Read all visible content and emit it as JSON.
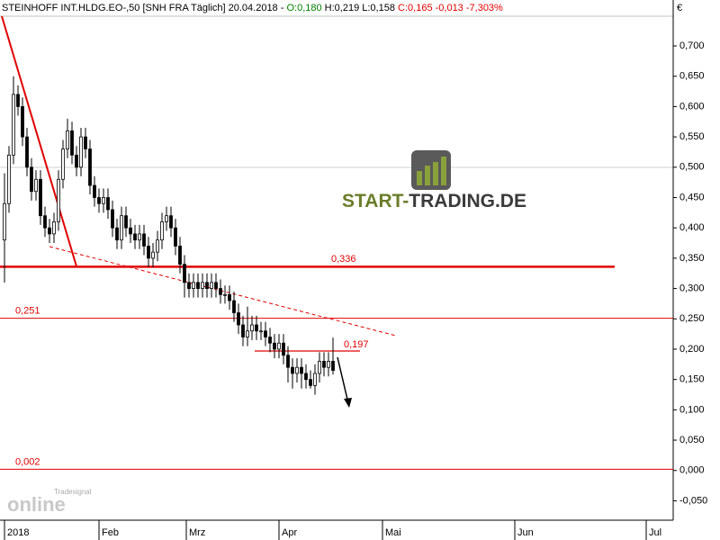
{
  "chart_data": {
    "type": "candlestick",
    "title": "STEINHOFF INT.HLDG.EO-,50 [SNH FRA  Täglich] 20.04.2018 -",
    "quote_open": "O:0,180",
    "quote_range": "H:0,219 L:0,158",
    "quote_close": "C:0,165 -0,013 -7,303%",
    "currency": "€",
    "logo": [
      "START-",
      "TRADING.DE"
    ],
    "watermark": [
      "Tradesignal",
      "online"
    ],
    "up_color": "#ffffff",
    "down_color": "#000000",
    "x": [
      0,
      1,
      2,
      3,
      4,
      5,
      6,
      7,
      8,
      9,
      10,
      11,
      12,
      13,
      14,
      15,
      16,
      17,
      18,
      19,
      20,
      21,
      22,
      23,
      24,
      25,
      26,
      27,
      28,
      29,
      30,
      31,
      32,
      33,
      34,
      35,
      36,
      37,
      38,
      39,
      40,
      41,
      42,
      43,
      44,
      45,
      46,
      47,
      48,
      49,
      50,
      51,
      52,
      53,
      54,
      55,
      56,
      57,
      58,
      59,
      60,
      61,
      62,
      63,
      64,
      65,
      66,
      67,
      68,
      69,
      70,
      71,
      72,
      73
    ],
    "open": [
      0.38,
      0.44,
      0.52,
      0.62,
      0.6,
      0.55,
      0.5,
      0.46,
      0.48,
      0.42,
      0.4,
      0.39,
      0.41,
      0.48,
      0.53,
      0.56,
      0.52,
      0.5,
      0.55,
      0.53,
      0.47,
      0.45,
      0.44,
      0.45,
      0.43,
      0.4,
      0.38,
      0.42,
      0.4,
      0.39,
      0.38,
      0.39,
      0.37,
      0.35,
      0.36,
      0.38,
      0.41,
      0.42,
      0.4,
      0.37,
      0.34,
      0.31,
      0.3,
      0.31,
      0.3,
      0.31,
      0.3,
      0.31,
      0.3,
      0.29,
      0.29,
      0.28,
      0.26,
      0.24,
      0.22,
      0.23,
      0.24,
      0.23,
      0.23,
      0.22,
      0.21,
      0.2,
      0.21,
      0.19,
      0.17,
      0.16,
      0.17,
      0.16,
      0.15,
      0.14,
      0.16,
      0.18,
      0.17,
      0.18
    ],
    "high": [
      0.49,
      0.535,
      0.65,
      0.635,
      0.615,
      0.565,
      0.515,
      0.495,
      0.495,
      0.435,
      0.415,
      0.425,
      0.495,
      0.545,
      0.58,
      0.575,
      0.535,
      0.565,
      0.565,
      0.545,
      0.485,
      0.465,
      0.465,
      0.465,
      0.445,
      0.415,
      0.435,
      0.435,
      0.415,
      0.405,
      0.405,
      0.405,
      0.385,
      0.375,
      0.395,
      0.425,
      0.435,
      0.435,
      0.415,
      0.385,
      0.355,
      0.325,
      0.325,
      0.325,
      0.325,
      0.325,
      0.325,
      0.325,
      0.315,
      0.305,
      0.305,
      0.295,
      0.275,
      0.255,
      0.27,
      0.255,
      0.255,
      0.245,
      0.245,
      0.235,
      0.225,
      0.225,
      0.225,
      0.205,
      0.185,
      0.185,
      0.185,
      0.175,
      0.165,
      0.175,
      0.195,
      0.195,
      0.195,
      0.219
    ],
    "low": [
      0.31,
      0.425,
      0.505,
      0.585,
      0.535,
      0.485,
      0.445,
      0.445,
      0.405,
      0.385,
      0.375,
      0.375,
      0.395,
      0.465,
      0.515,
      0.505,
      0.485,
      0.485,
      0.515,
      0.455,
      0.435,
      0.425,
      0.425,
      0.415,
      0.385,
      0.365,
      0.365,
      0.385,
      0.375,
      0.365,
      0.365,
      0.355,
      0.335,
      0.335,
      0.345,
      0.365,
      0.395,
      0.385,
      0.355,
      0.325,
      0.285,
      0.285,
      0.285,
      0.285,
      0.285,
      0.285,
      0.285,
      0.285,
      0.275,
      0.275,
      0.265,
      0.245,
      0.225,
      0.205,
      0.205,
      0.215,
      0.215,
      0.215,
      0.205,
      0.195,
      0.185,
      0.185,
      0.175,
      0.145,
      0.135,
      0.145,
      0.135,
      0.135,
      0.135,
      0.125,
      0.145,
      0.155,
      0.155,
      0.158
    ],
    "close": [
      0.44,
      0.52,
      0.62,
      0.6,
      0.55,
      0.5,
      0.46,
      0.48,
      0.42,
      0.4,
      0.39,
      0.41,
      0.48,
      0.53,
      0.56,
      0.52,
      0.5,
      0.55,
      0.53,
      0.47,
      0.45,
      0.44,
      0.45,
      0.43,
      0.4,
      0.38,
      0.42,
      0.4,
      0.39,
      0.38,
      0.39,
      0.37,
      0.35,
      0.36,
      0.38,
      0.41,
      0.42,
      0.4,
      0.37,
      0.34,
      0.31,
      0.3,
      0.31,
      0.3,
      0.31,
      0.3,
      0.31,
      0.3,
      0.29,
      0.29,
      0.28,
      0.26,
      0.24,
      0.22,
      0.23,
      0.24,
      0.23,
      0.23,
      0.22,
      0.21,
      0.2,
      0.21,
      0.19,
      0.17,
      0.16,
      0.17,
      0.16,
      0.15,
      0.14,
      0.16,
      0.18,
      0.17,
      0.18,
      0.165
    ],
    "xlim": [
      -1,
      148.6
    ],
    "xticks": [
      {
        "value": 0,
        "label": "2018"
      },
      {
        "value": 21,
        "label": "Feb"
      },
      {
        "value": 40.4,
        "label": "Mrz"
      },
      {
        "value": 61,
        "label": "Apr"
      },
      {
        "value": 84,
        "label": "Mai"
      },
      {
        "value": 113.4,
        "label": "Jun"
      },
      {
        "value": 142.6,
        "label": "Jul"
      }
    ],
    "ylim": [
      -0.082,
      0.749
    ],
    "yticks": [
      {
        "value": -0.05,
        "label": "-0,050"
      },
      {
        "value": 0,
        "label": "0,000"
      },
      {
        "value": 0.05,
        "label": "0,050"
      },
      {
        "value": 0.1,
        "label": "0,100"
      },
      {
        "value": 0.15,
        "label": "0,150"
      },
      {
        "value": 0.2,
        "label": "0,200"
      },
      {
        "value": 0.25,
        "label": "0,250"
      },
      {
        "value": 0.3,
        "label": "0,300"
      },
      {
        "value": 0.35,
        "label": "0,350"
      },
      {
        "value": 0.4,
        "label": "0,400"
      },
      {
        "value": 0.45,
        "label": "0,450"
      },
      {
        "value": 0.5,
        "label": "0,500"
      },
      {
        "value": 0.55,
        "label": "0,550"
      },
      {
        "value": 0.6,
        "label": "0,600"
      },
      {
        "value": 0.65,
        "label": "0,650"
      },
      {
        "value": 0.7,
        "label": "0,700"
      }
    ],
    "levels": [
      {
        "value": 0.336,
        "label": "0,336",
        "color": "#e00000"
      },
      {
        "value": 0.251,
        "label": "0,251",
        "color": "#e00000"
      },
      {
        "value": 0.002,
        "label": "0,002",
        "color": "#e00000"
      },
      {
        "value": 0.197,
        "label": "0,197",
        "color": "#e00000"
      }
    ]
  }
}
